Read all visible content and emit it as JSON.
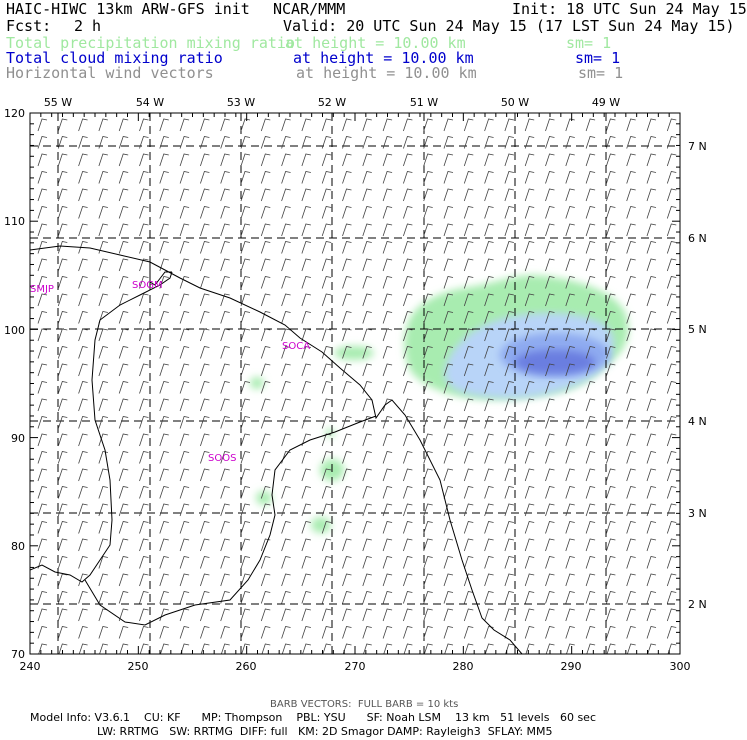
{
  "header": {
    "title": "HAIC-HIWC 13km ARW-GFS init",
    "org": "NCAR/MMM",
    "init": "Init: 18 UTC Sun 24 May 15",
    "fcst_label": "Fcst:",
    "fcst_value": "2 h",
    "valid": "Valid: 20 UTC Sun 24 May 15 (17 LST Sun 24 May 15)"
  },
  "fields": [
    {
      "name": "Total precipitation mixing ratio",
      "height": "at height = 10.00 km",
      "sm": "sm= 1",
      "color": "#a0e8a0"
    },
    {
      "name": "Total cloud mixing ratio",
      "height": "at height = 10.00 km",
      "sm": "sm= 1",
      "color": "#0000cc"
    },
    {
      "name": "Horizontal wind vectors",
      "height": "at height = 10.00 km",
      "sm": "sm= 1",
      "color": "#909090"
    }
  ],
  "axes": {
    "x_ticks": [
      "240",
      "250",
      "260",
      "270",
      "280",
      "290",
      "300"
    ],
    "y_ticks": [
      "70",
      "80",
      "90",
      "100",
      "110",
      "120"
    ],
    "lon_labels": [
      "55 W",
      "54 W",
      "53 W",
      "52 W",
      "51 W",
      "50 W",
      "49 W"
    ],
    "lat_labels": [
      "7 N",
      "6 N",
      "5 N",
      "4 N",
      "3 N",
      "2 N"
    ]
  },
  "stations": [
    "SMJP",
    "SOGM",
    "SOCA",
    "SOOS"
  ],
  "footer": {
    "barb": "BARB VECTORS:  FULL BARB = 10 kts",
    "line1": "Model Info: V3.6.1    CU: KF      MP: Thompson    PBL: YSU      SF: Noah LSM    13 km   51 levels   60 sec",
    "line2": "LW: RRTMG   SW: RRTMG  DIFF: full   KM: 2D Smagor DAMP: Rayleigh3  SFLAY: MM5"
  },
  "colors": {
    "precip": "#a8ecb0",
    "cloud_light": "#b8d4f8",
    "cloud_mid": "#8eaaf0",
    "cloud_dark": "#6a7ee0",
    "station": "#cc00cc"
  }
}
